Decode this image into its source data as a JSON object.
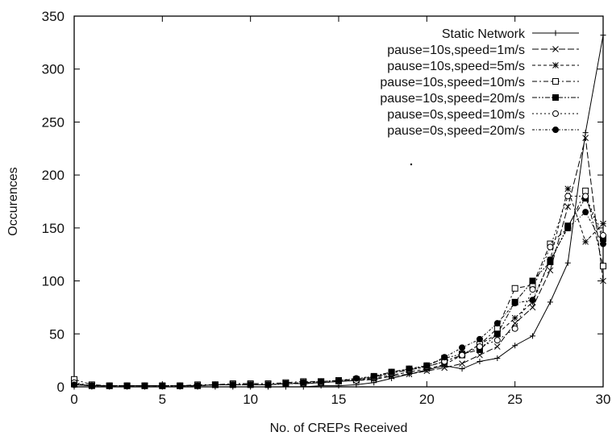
{
  "chart_data": {
    "type": "line",
    "title": "",
    "xlabel": "No. of CREPs Received",
    "ylabel": "Occurences",
    "xlim": [
      0,
      30
    ],
    "ylim": [
      0,
      350
    ],
    "xticks": [
      "0",
      "5",
      "10",
      "15",
      "20",
      "25",
      "30"
    ],
    "yticks": [
      "0",
      "50",
      "100",
      "150",
      "200",
      "250",
      "300",
      "350"
    ],
    "grid": false,
    "legend_position": "top-right",
    "x": [
      0,
      1,
      2,
      3,
      4,
      5,
      6,
      7,
      8,
      9,
      10,
      11,
      12,
      13,
      14,
      15,
      16,
      17,
      18,
      19,
      20,
      21,
      22,
      23,
      24,
      25,
      26,
      27,
      28,
      29,
      30
    ],
    "series": [
      {
        "name": "Static Network",
        "marker": "plus",
        "dash": "solid",
        "values": [
          0,
          0,
          0,
          0,
          0,
          0,
          0,
          0,
          0,
          0,
          0,
          0,
          0,
          0,
          1,
          1,
          2,
          4,
          8,
          12,
          16,
          20,
          17,
          24,
          27,
          39,
          48,
          80,
          117,
          240,
          332
        ]
      },
      {
        "name": "pause=10s,speed=1m/s",
        "marker": "x",
        "dash": "long",
        "values": [
          2,
          1,
          1,
          1,
          1,
          1,
          1,
          1,
          2,
          2,
          2,
          2,
          3,
          3,
          4,
          5,
          6,
          7,
          10,
          12,
          15,
          18,
          22,
          30,
          38,
          60,
          75,
          110,
          170,
          235,
          100
        ]
      },
      {
        "name": "pause=10s,speed=5m/s",
        "marker": "star",
        "dash": "short",
        "values": [
          3,
          1,
          1,
          1,
          1,
          1,
          1,
          1,
          2,
          2,
          2,
          2,
          3,
          3,
          4,
          5,
          6,
          8,
          11,
          14,
          17,
          21,
          30,
          40,
          50,
          65,
          80,
          120,
          187,
          137,
          154
        ]
      },
      {
        "name": "pause=10s,speed=10m/s",
        "marker": "square-open",
        "dash": "dashdot",
        "values": [
          7,
          2,
          1,
          1,
          1,
          1,
          1,
          2,
          2,
          3,
          3,
          3,
          4,
          5,
          5,
          6,
          7,
          9,
          13,
          16,
          19,
          24,
          30,
          40,
          55,
          93,
          96,
          135,
          150,
          185,
          114
        ]
      },
      {
        "name": "pause=10s,speed=20m/s",
        "marker": "square-filled",
        "dash": "dashdotdot",
        "values": [
          3,
          1,
          1,
          1,
          1,
          1,
          1,
          1,
          2,
          2,
          2,
          2,
          3,
          4,
          5,
          6,
          7,
          10,
          14,
          17,
          20,
          27,
          31,
          35,
          50,
          80,
          100,
          118,
          152,
          178,
          140
        ]
      },
      {
        "name": "pause=0s,speed=10m/s",
        "marker": "circle-open",
        "dash": "dotted",
        "values": [
          4,
          1,
          1,
          1,
          1,
          1,
          1,
          1,
          2,
          2,
          2,
          2,
          3,
          3,
          4,
          5,
          6,
          9,
          13,
          16,
          19,
          24,
          30,
          38,
          44,
          55,
          92,
          132,
          180,
          180,
          143
        ]
      },
      {
        "name": "pause=0s,speed=20m/s",
        "marker": "circle-filled",
        "dash": "dotdash",
        "values": [
          2,
          1,
          1,
          1,
          1,
          1,
          1,
          1,
          2,
          2,
          2,
          2,
          3,
          4,
          5,
          6,
          8,
          10,
          14,
          17,
          20,
          28,
          37,
          45,
          60,
          79,
          82,
          120,
          150,
          165,
          135
        ]
      }
    ]
  }
}
